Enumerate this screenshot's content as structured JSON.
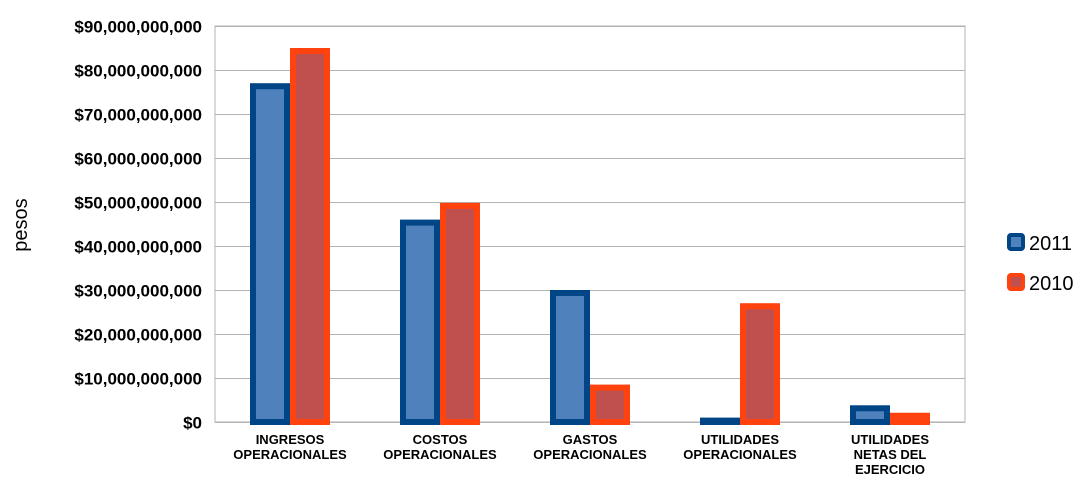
{
  "chart_data": {
    "type": "bar",
    "title": "",
    "xlabel": "",
    "ylabel": "pesos",
    "ylim": [
      0,
      90000000000
    ],
    "y_ticks": [
      {
        "value": 0,
        "label": "$0"
      },
      {
        "value": 10000000000,
        "label": "$10,000,000,000"
      },
      {
        "value": 20000000000,
        "label": "$20,000,000,000"
      },
      {
        "value": 30000000000,
        "label": "$30,000,000,000"
      },
      {
        "value": 40000000000,
        "label": "$40,000,000,000"
      },
      {
        "value": 50000000000,
        "label": "$50,000,000,000"
      },
      {
        "value": 60000000000,
        "label": "$60,000,000,000"
      },
      {
        "value": 70000000000,
        "label": "$70,000,000,000"
      },
      {
        "value": 80000000000,
        "label": "$80,000,000,000"
      },
      {
        "value": 90000000000,
        "label": "$90,000,000,000"
      }
    ],
    "categories": [
      [
        "INGRESOS",
        "OPERACIONALES"
      ],
      [
        "COSTOS",
        "OPERACIONALES"
      ],
      [
        "GASTOS",
        "OPERACIONALES"
      ],
      [
        "UTILIDADES",
        "OPERACIONALES"
      ],
      [
        "UTILIDADES",
        "NETAS DEL",
        "EJERCICIO"
      ]
    ],
    "series": [
      {
        "name": "2011",
        "values": [
          77000000000,
          46000000000,
          30000000000,
          1000000000,
          3800000000
        ],
        "fill": "#4f81bd",
        "stroke": "#004586"
      },
      {
        "name": "2010",
        "values": [
          85000000000,
          49800000000,
          8500000000,
          27000000000,
          2100000000
        ],
        "fill": "#c0504d",
        "stroke": "#ff420e"
      }
    ],
    "grid": true,
    "legend_position": "right"
  }
}
